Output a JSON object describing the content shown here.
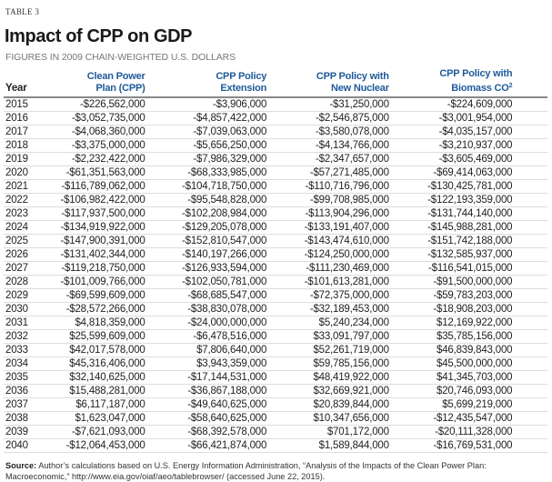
{
  "table_label": "TABLE 3",
  "title": "Impact of CPP on GDP",
  "subtitle": "FIGURES IN 2009 CHAIN-WEIGHTED U.S. DOLLARS",
  "columns": {
    "year": "Year",
    "cpp_line1": "Clean Power",
    "cpp_line2": "Plan (CPP)",
    "ext_line1": "CPP Policy",
    "ext_line2": "Extension",
    "nuc_line1": "CPP Policy with",
    "nuc_line2": "New Nuclear",
    "bio_line1": "CPP Policy with",
    "bio_line2": "Biomass CO",
    "bio_sup": "2"
  },
  "header_color": "#1f5a99",
  "rows": [
    [
      "2015",
      "-$226,562,000",
      "-$3,906,000",
      "-$31,250,000",
      "-$224,609,000"
    ],
    [
      "2016",
      "-$3,052,735,000",
      "-$4,857,422,000",
      "-$2,546,875,000",
      "-$3,001,954,000"
    ],
    [
      "2017",
      "-$4,068,360,000",
      "-$7,039,063,000",
      "-$3,580,078,000",
      "-$4,035,157,000"
    ],
    [
      "2018",
      "-$3,375,000,000",
      "-$5,656,250,000",
      "-$4,134,766,000",
      "-$3,210,937,000"
    ],
    [
      "2019",
      "-$2,232,422,000",
      "-$7,986,329,000",
      "-$2,347,657,000",
      "-$3,605,469,000"
    ],
    [
      "2020",
      "-$61,351,563,000",
      "-$68,333,985,000",
      "-$57,271,485,000",
      "-$69,414,063,000"
    ],
    [
      "2021",
      "-$116,789,062,000",
      "-$104,718,750,000",
      "-$110,716,796,000",
      "-$130,425,781,000"
    ],
    [
      "2022",
      "-$106,982,422,000",
      "-$95,548,828,000",
      "-$99,708,985,000",
      "-$122,193,359,000"
    ],
    [
      "2023",
      "-$117,937,500,000",
      "-$102,208,984,000",
      "-$113,904,296,000",
      "-$131,744,140,000"
    ],
    [
      "2024",
      "-$134,919,922,000",
      "-$129,205,078,000",
      "-$133,191,407,000",
      "-$145,988,281,000"
    ],
    [
      "2025",
      "-$147,900,391,000",
      "-$152,810,547,000",
      "-$143,474,610,000",
      "-$151,742,188,000"
    ],
    [
      "2026",
      "-$131,402,344,000",
      "-$140,197,266,000",
      "-$124,250,000,000",
      "-$132,585,937,000"
    ],
    [
      "2027",
      "-$119,218,750,000",
      "-$126,933,594,000",
      "-$111,230,469,000",
      "-$116,541,015,000"
    ],
    [
      "2028",
      "-$101,009,766,000",
      "-$102,050,781,000",
      "-$101,613,281,000",
      "-$91,500,000,000"
    ],
    [
      "2029",
      "-$69,599,609,000",
      "-$68,685,547,000",
      "-$72,375,000,000",
      "-$59,783,203,000"
    ],
    [
      "2030",
      "-$28,572,266,000",
      "-$38,830,078,000",
      "-$32,189,453,000",
      "-$18,908,203,000"
    ],
    [
      "2031",
      "$4,818,359,000",
      "-$24,000,000,000",
      "$5,240,234,000",
      "$12,169,922,000"
    ],
    [
      "2032",
      "$25,599,609,000",
      "-$6,478,516,000",
      "$33,091,797,000",
      "$35,785,156,000"
    ],
    [
      "2033",
      "$42,017,578,000",
      "$7,806,640,000",
      "$52,261,719,000",
      "$46,839,843,000"
    ],
    [
      "2034",
      "$45,316,406,000",
      "$3,943,359,000",
      "$59,785,156,000",
      "$45,500,000,000"
    ],
    [
      "2035",
      "$32,140,625,000",
      "-$17,144,531,000",
      "$48,419,922,000",
      "$41,345,703,000"
    ],
    [
      "2036",
      "$15,488,281,000",
      "-$36,867,188,000",
      "$32,669,921,000",
      "$20,746,093,000"
    ],
    [
      "2037",
      "$6,117,187,000",
      "-$49,640,625,000",
      "$20,839,844,000",
      "$5,699,219,000"
    ],
    [
      "2038",
      "$1,623,047,000",
      "-$58,640,625,000",
      "$10,347,656,000",
      "-$12,435,547,000"
    ],
    [
      "2039",
      "-$7,621,093,000",
      "-$68,392,578,000",
      "$701,172,000",
      "-$20,111,328,000"
    ],
    [
      "2040",
      "-$12,064,453,000",
      "-$66,421,874,000",
      "$1,589,844,000",
      "-$16,769,531,000"
    ]
  ],
  "source": {
    "label": "Source:",
    "text": " Author’s calculations based on U.S. Energy Information Administration, “Analysis of the Impacts of the Clean Power Plan: Macroeconomic,” http://www.eia.gov/oiaf/aeo/tablebrowser/ (accessed June 22, 2015)."
  }
}
